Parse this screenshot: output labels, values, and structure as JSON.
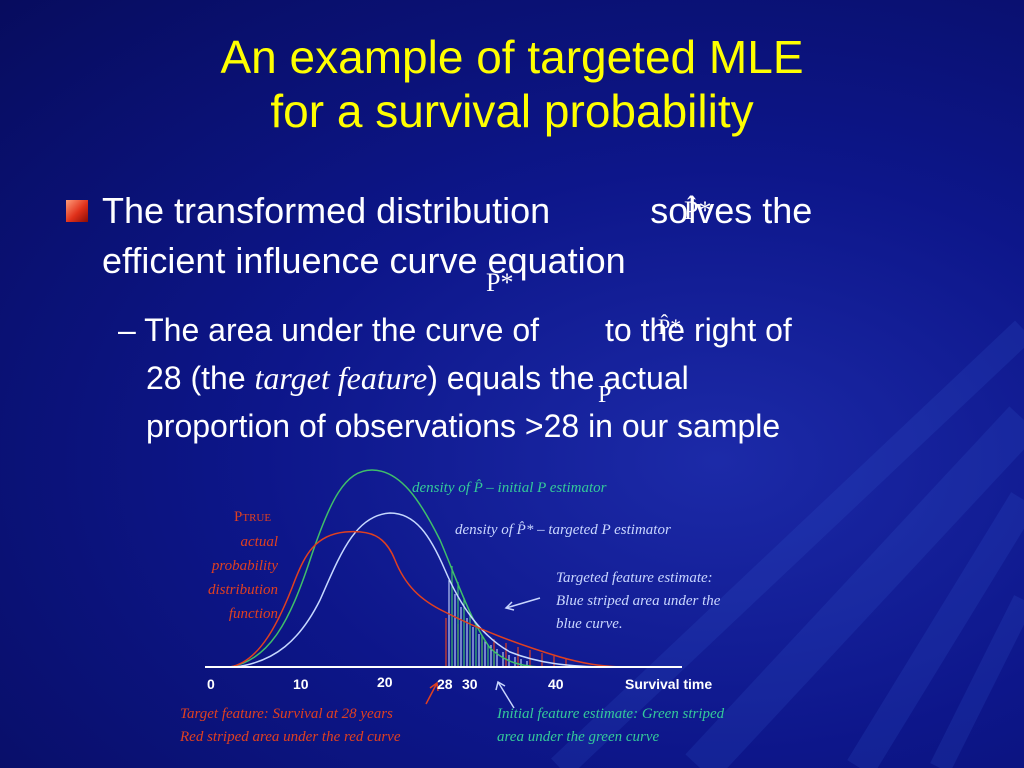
{
  "title": {
    "line1": "An example of targeted MLE",
    "line2": "for a survival probability"
  },
  "bullet": {
    "pre": "The transformed distribution",
    "symbol": "P̂*",
    "post": "solves the",
    "line2": "efficient influence curve equation"
  },
  "sub": {
    "dash": "– The area under the curve of",
    "symbol": "P̂*",
    "post": "to the right of",
    "line2_pre": "28 (the",
    "line2_italic": "target feature",
    "line2_post": ") equals the actual",
    "line3": "proportion of observations >28 in our sample"
  },
  "overlay_symbols": {
    "a": "P*",
    "b": "P"
  },
  "chart": {
    "ptrue_label": "P",
    "ptrue_sub": "TRUE",
    "ptrue_desc": [
      "actual",
      "probability",
      "distribution",
      "function"
    ],
    "density_p": "density of P̂ – initial P estimator",
    "density_pstar": "density of P̂* – targeted P estimator",
    "targeted_note": [
      "Targeted feature estimate:",
      "Blue striped area under the",
      "blue curve."
    ],
    "target_feature_note": [
      "Target feature: Survival at 28 years",
      "Red striped area under the red curve"
    ],
    "initial_note": [
      "Initial feature estimate: Green striped",
      "area under the green curve"
    ],
    "axis_label": "Survival time",
    "ticks": [
      "0",
      "10",
      "20",
      "28",
      "30",
      "40"
    ],
    "colors": {
      "red": "#e04020",
      "green": "#3fbf6a",
      "blue": "#c6d8ff",
      "cyan_text": "#34c99a",
      "label_blue": "#c9d6ff"
    }
  }
}
